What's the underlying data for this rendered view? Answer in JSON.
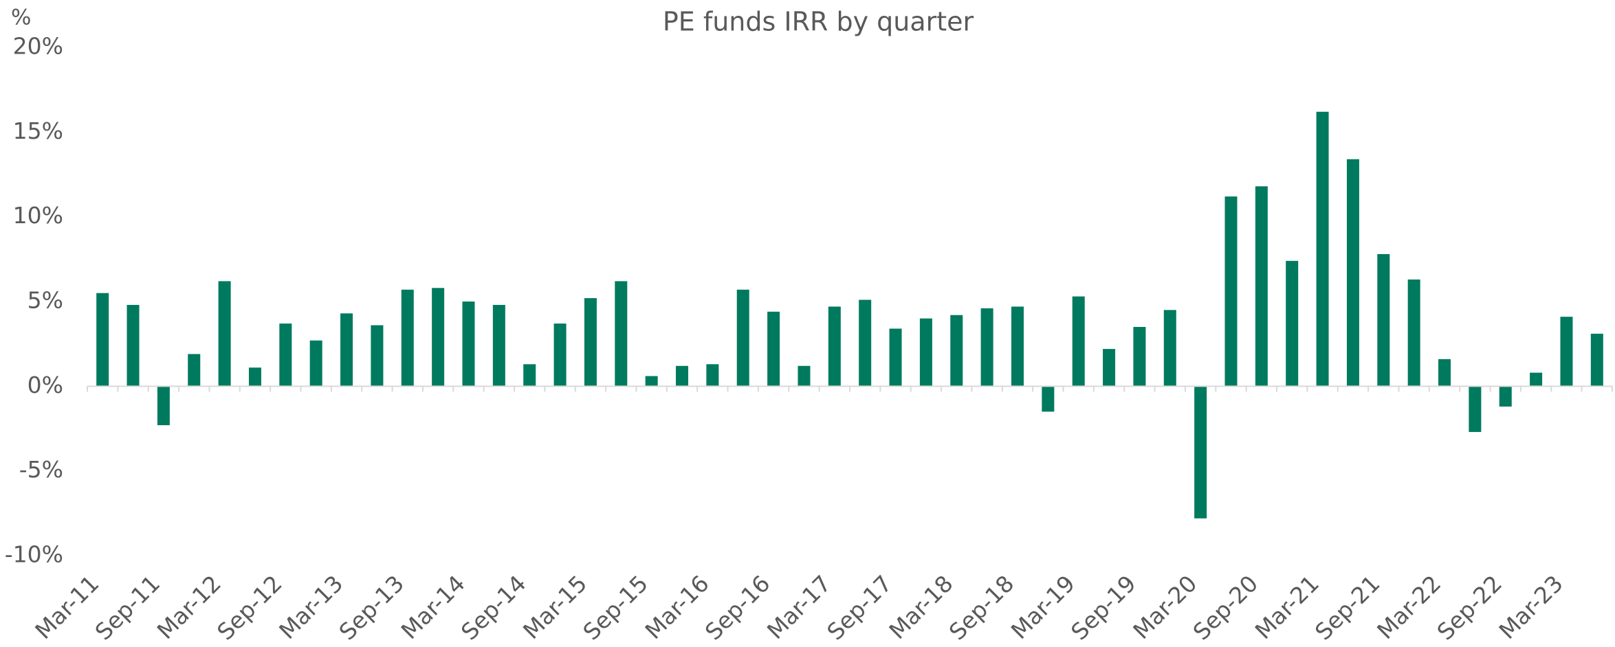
{
  "chart_data": {
    "type": "bar",
    "title": "PE funds IRR by quarter",
    "unit_label": "%",
    "categories": [
      "Mar-11",
      null,
      "Sep-11",
      null,
      "Mar-12",
      null,
      "Sep-12",
      null,
      "Mar-13",
      null,
      "Sep-13",
      null,
      "Mar-14",
      null,
      "Sep-14",
      null,
      "Mar-15",
      null,
      "Sep-15",
      null,
      "Mar-16",
      null,
      "Sep-16",
      null,
      "Mar-17",
      null,
      "Sep-17",
      null,
      "Mar-18",
      null,
      "Sep-18",
      null,
      "Mar-19",
      null,
      "Sep-19",
      null,
      "Mar-20",
      null,
      "Sep-20",
      null,
      "Mar-21",
      null,
      "Sep-21",
      null,
      "Mar-22",
      null,
      "Sep-22",
      null,
      "Mar-23",
      null
    ],
    "values": [
      5.5,
      4.8,
      -2.3,
      1.9,
      6.2,
      1.1,
      3.7,
      2.7,
      4.3,
      3.6,
      5.7,
      5.8,
      5.0,
      4.8,
      1.3,
      3.7,
      5.2,
      6.2,
      0.6,
      1.2,
      1.3,
      5.7,
      4.4,
      1.2,
      4.7,
      5.1,
      3.4,
      4.0,
      4.2,
      4.6,
      4.7,
      -1.5,
      5.3,
      2.2,
      3.5,
      4.5,
      -7.8,
      11.2,
      11.8,
      7.4,
      16.2,
      13.4,
      7.8,
      6.3,
      1.6,
      -2.7,
      -1.2,
      0.8,
      4.1,
      3.1
    ],
    "color": "#007a5e",
    "ylim": [
      -10,
      20
    ],
    "yticks": [
      {
        "value": -10,
        "label": "-10%"
      },
      {
        "value": -5,
        "label": "-5%"
      },
      {
        "value": 0,
        "label": "0%"
      },
      {
        "value": 5,
        "label": "5%"
      },
      {
        "value": 10,
        "label": "10%"
      },
      {
        "value": 15,
        "label": "15%"
      },
      {
        "value": 20,
        "label": "20%"
      }
    ],
    "grid": false
  }
}
